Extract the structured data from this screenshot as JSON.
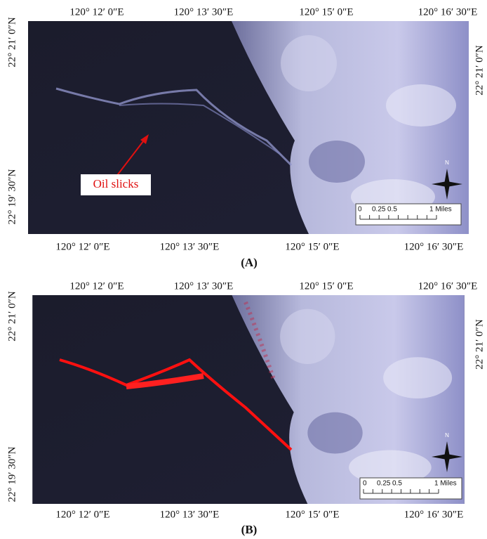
{
  "panels": [
    {
      "caption": "(A)",
      "top_labels": [
        "120° 12′ 0″E",
        "120° 13′ 30″E",
        "120° 15′ 0″E",
        "120° 16′ 30″E"
      ],
      "bottom_labels": [
        "120° 12′ 0″E",
        "120° 13′ 30″E",
        "120° 15′ 0″E",
        "120° 16′ 30″E"
      ],
      "left_labels": [
        "22° 21′ 0″N",
        "22° 19′ 30″N"
      ],
      "right_labels": [
        "22° 21′ 0″N"
      ],
      "annotation": "Oil slicks",
      "north": "N",
      "scale_labels": [
        "0",
        "0.25",
        "0.5",
        "1 Miles"
      ]
    },
    {
      "caption": "(B)",
      "top_labels": [
        "120° 12′ 0″E",
        "120° 13′ 30″E",
        "120° 15′ 0″E",
        "120° 16′ 30″E"
      ],
      "bottom_labels": [
        "120° 12′ 0″E",
        "120° 13′ 30″E",
        "120° 15′ 0″E",
        "120° 16′ 30″E"
      ],
      "left_labels": [
        "22° 21′ 0″N",
        "22° 19′ 30″N"
      ],
      "right_labels": [
        "22° 21′ 0″N"
      ],
      "north": "N",
      "scale_labels": [
        "0",
        "0.25",
        "0.5",
        "1 Miles"
      ]
    }
  ]
}
